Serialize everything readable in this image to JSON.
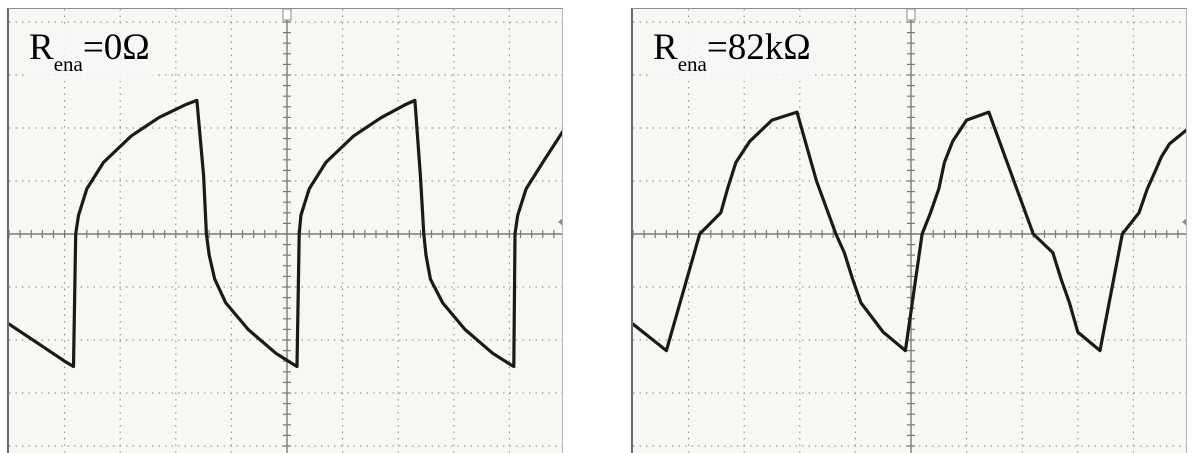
{
  "chart_data": [
    {
      "type": "line",
      "annotation": {
        "symbol": "R",
        "subscript": "ena",
        "value": "=0Ω"
      },
      "grid": true,
      "xlim": [
        0,
        10
      ],
      "ylim": [
        -4,
        4
      ],
      "trace_color": "#1a1a1a",
      "series": [
        {
          "x": [
            0,
            0.5,
            1.0,
            1.16,
            1.2,
            1.25,
            1.4,
            1.7,
            2.2,
            2.7,
            3.2,
            3.38,
            3.5,
            3.55,
            3.6,
            3.7,
            3.9,
            4.3,
            4.8,
            5.1,
            5.18,
            5.22,
            5.25,
            5.4,
            5.7,
            6.2,
            6.7,
            7.15,
            7.3,
            7.4,
            7.46,
            7.5,
            7.58,
            7.8,
            8.2,
            8.7,
            9.0,
            9.08,
            9.1,
            9.15,
            9.3,
            9.6,
            10.0
          ],
          "y": [
            -1.7,
            -2.05,
            -2.4,
            -2.5,
            0.0,
            0.35,
            0.85,
            1.35,
            1.85,
            2.2,
            2.45,
            2.52,
            1.1,
            0.0,
            -0.4,
            -0.85,
            -1.3,
            -1.8,
            -2.25,
            -2.45,
            -2.5,
            0.0,
            0.35,
            0.85,
            1.35,
            1.85,
            2.2,
            2.45,
            2.52,
            1.1,
            0.0,
            -0.4,
            -0.85,
            -1.3,
            -1.8,
            -2.25,
            -2.45,
            -2.5,
            0.0,
            0.35,
            0.85,
            1.35,
            2.0
          ]
        }
      ]
    },
    {
      "type": "line",
      "annotation": {
        "symbol": "R",
        "subscript": "ena",
        "value": "=82kΩ"
      },
      "grid": true,
      "xlim": [
        0,
        10
      ],
      "ylim": [
        -4,
        4
      ],
      "trace_color": "#1a1a1a",
      "series": [
        {
          "x": [
            0,
            0.6,
            1.2,
            1.58,
            1.7,
            1.85,
            2.1,
            2.5,
            2.95,
            3.3,
            3.65,
            3.8,
            3.95,
            4.1,
            4.5,
            4.9,
            5.2,
            5.35,
            5.5,
            5.6,
            5.75,
            6.0,
            6.4,
            6.85,
            7.2,
            7.55,
            7.7,
            7.85,
            8.0,
            8.4,
            8.8,
            9.1,
            9.25,
            9.4,
            9.5,
            9.65,
            10.0
          ],
          "y": [
            -1.7,
            -2.2,
            0.0,
            0.4,
            0.85,
            1.35,
            1.75,
            2.15,
            2.3,
            1.0,
            0.0,
            -0.35,
            -0.85,
            -1.3,
            -1.85,
            -2.2,
            0.0,
            0.4,
            0.85,
            1.35,
            1.75,
            2.15,
            2.3,
            1.0,
            0.0,
            -0.35,
            -0.85,
            -1.3,
            -1.85,
            -2.2,
            0.0,
            0.4,
            0.85,
            1.2,
            1.45,
            1.7,
            2.0
          ]
        }
      ]
    }
  ]
}
